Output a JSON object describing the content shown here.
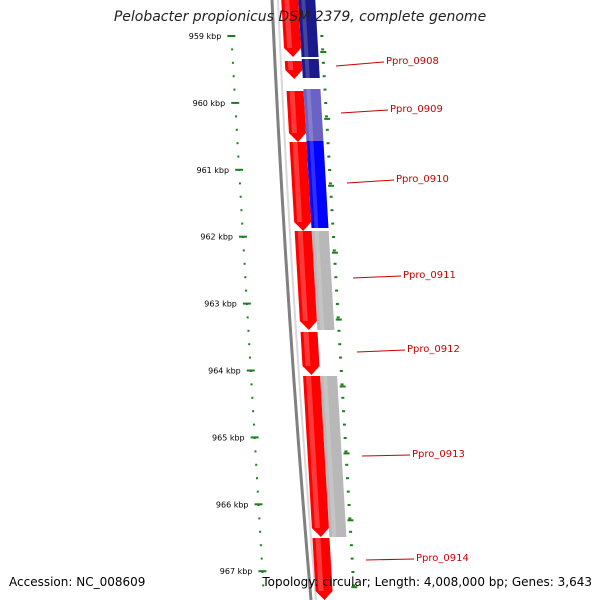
{
  "title": "Pelobacter propionicus DSM 2379, complete genome",
  "footer": {
    "accession": "Accession: NC_008609",
    "summary": "Topology: circular; Length: 4,008,000 bp; Genes: 3,643"
  },
  "colors": {
    "forward_gene": "#ff0000",
    "feature_navy": "#1a1a8c",
    "feature_slate": "#6a62c4",
    "feature_blue": "#0000ff",
    "feature_gray": "#b8b8b8",
    "ruler_tick": "#1f7f1f",
    "backbone": "#808080",
    "gene_label": "#cc0000"
  },
  "ruler": {
    "ticks": [
      "959 kbp",
      "960 kbp",
      "961 kbp",
      "962 kbp",
      "963 kbp",
      "964 kbp",
      "965 kbp",
      "966 kbp",
      "967 kbp"
    ]
  },
  "genes": [
    {
      "label": "Ppro_0908"
    },
    {
      "label": "Ppro_0909"
    },
    {
      "label": "Ppro_0910"
    },
    {
      "label": "Ppro_0911"
    },
    {
      "label": "Ppro_0912"
    },
    {
      "label": "Ppro_0913"
    },
    {
      "label": "Ppro_0914"
    }
  ]
}
